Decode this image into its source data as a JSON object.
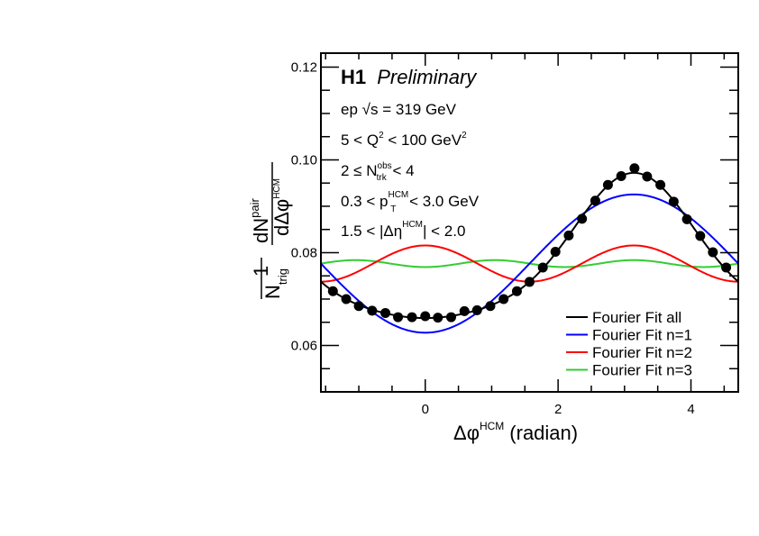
{
  "chart_data": {
    "type": "scatter",
    "title": "H1 Preliminary",
    "experiment": "H1",
    "status": "Preliminary",
    "xlabel": "Δφ^HCM (radian)",
    "xlabel_main": "Δφ",
    "xlabel_sup": "HCM",
    "xlabel_unit": "(radian)",
    "ylabel": "1/N_trig dN^pair/dΔφ^HCM",
    "ylabel_parts": {
      "one": "1",
      "N": "N",
      "trig": "trig",
      "dN": "dN",
      "pair": "pair",
      "dDphi": "dΔφ",
      "hcm": "HCM"
    },
    "xlim": [
      -1.5708,
      4.7124
    ],
    "ylim": [
      0.05,
      0.123
    ],
    "x_ticks": [
      0,
      2,
      4
    ],
    "x_tick_labels": [
      "0",
      "2",
      "4"
    ],
    "x_minor_step": 0.5,
    "y_ticks": [
      0.06,
      0.08,
      0.1,
      0.12
    ],
    "y_tick_labels": [
      "0.06",
      "0.08",
      "0.10",
      "0.12"
    ],
    "y_minor_step": 0.005,
    "grid": false,
    "annotations": [
      {
        "id": "energy",
        "text": "ep √s = 319 GeV",
        "parts": [
          "ep ",
          "√s",
          " = 319 GeV"
        ]
      },
      {
        "id": "q2",
        "text": "5 < Q² < 100 GeV²",
        "parts": [
          "5 < Q",
          "2",
          " < 100 GeV",
          "2"
        ]
      },
      {
        "id": "ntrk",
        "text": "2 ≤ N_trk^obs < 4",
        "parts": [
          "2 ≤ N",
          "obs",
          "trk",
          " < 4"
        ]
      },
      {
        "id": "pt",
        "text": "0.3 < p_T^HCM < 3.0 GeV",
        "parts": [
          "0.3 < p",
          "HCM",
          "T",
          " < 3.0 GeV"
        ]
      },
      {
        "id": "eta",
        "text": "1.5 < |Δη^HCM| < 2.0",
        "parts": [
          "1.5 < |Δη",
          "HCM",
          "| < 2.0"
        ]
      }
    ],
    "data_points": {
      "name": "Data",
      "color": "#000000",
      "x": [
        -1.39,
        -1.19,
        -1.0,
        -0.8,
        -0.6,
        -0.41,
        -0.2,
        0.0,
        0.19,
        0.39,
        0.59,
        0.78,
        0.98,
        1.18,
        1.38,
        1.57,
        1.77,
        1.96,
        2.16,
        2.36,
        2.56,
        2.75,
        2.95,
        3.15,
        3.34,
        3.54,
        3.74,
        3.94,
        4.14,
        4.33,
        4.53
      ],
      "y": [
        0.0717,
        0.07,
        0.0685,
        0.0675,
        0.067,
        0.0661,
        0.0661,
        0.0663,
        0.066,
        0.0661,
        0.0674,
        0.0676,
        0.0685,
        0.07,
        0.0717,
        0.0737,
        0.0768,
        0.0802,
        0.0837,
        0.0873,
        0.0912,
        0.0946,
        0.0965,
        0.0982,
        0.0964,
        0.0946,
        0.091,
        0.0872,
        0.0836,
        0.0801,
        0.0768
      ]
    },
    "fourier_fit": {
      "form": "a0*(1 + sum_n 2 v_n cos(n*phi))",
      "a0": 0.07765,
      "amplitudes": {
        "n1": -0.0149,
        "n2": 0.0039,
        "n3": -0.00075
      }
    },
    "series": [
      {
        "name": "Fourier Fit all",
        "color": "#000000",
        "key": "all"
      },
      {
        "name": "Fourier Fit n=1",
        "color": "#0000ff",
        "key": "n1"
      },
      {
        "name": "Fourier Fit n=2",
        "color": "#ff0000",
        "key": "n2"
      },
      {
        "name": "Fourier Fit n=3",
        "color": "#33cc33",
        "key": "n3"
      }
    ],
    "legend_position": "bottom-right"
  }
}
